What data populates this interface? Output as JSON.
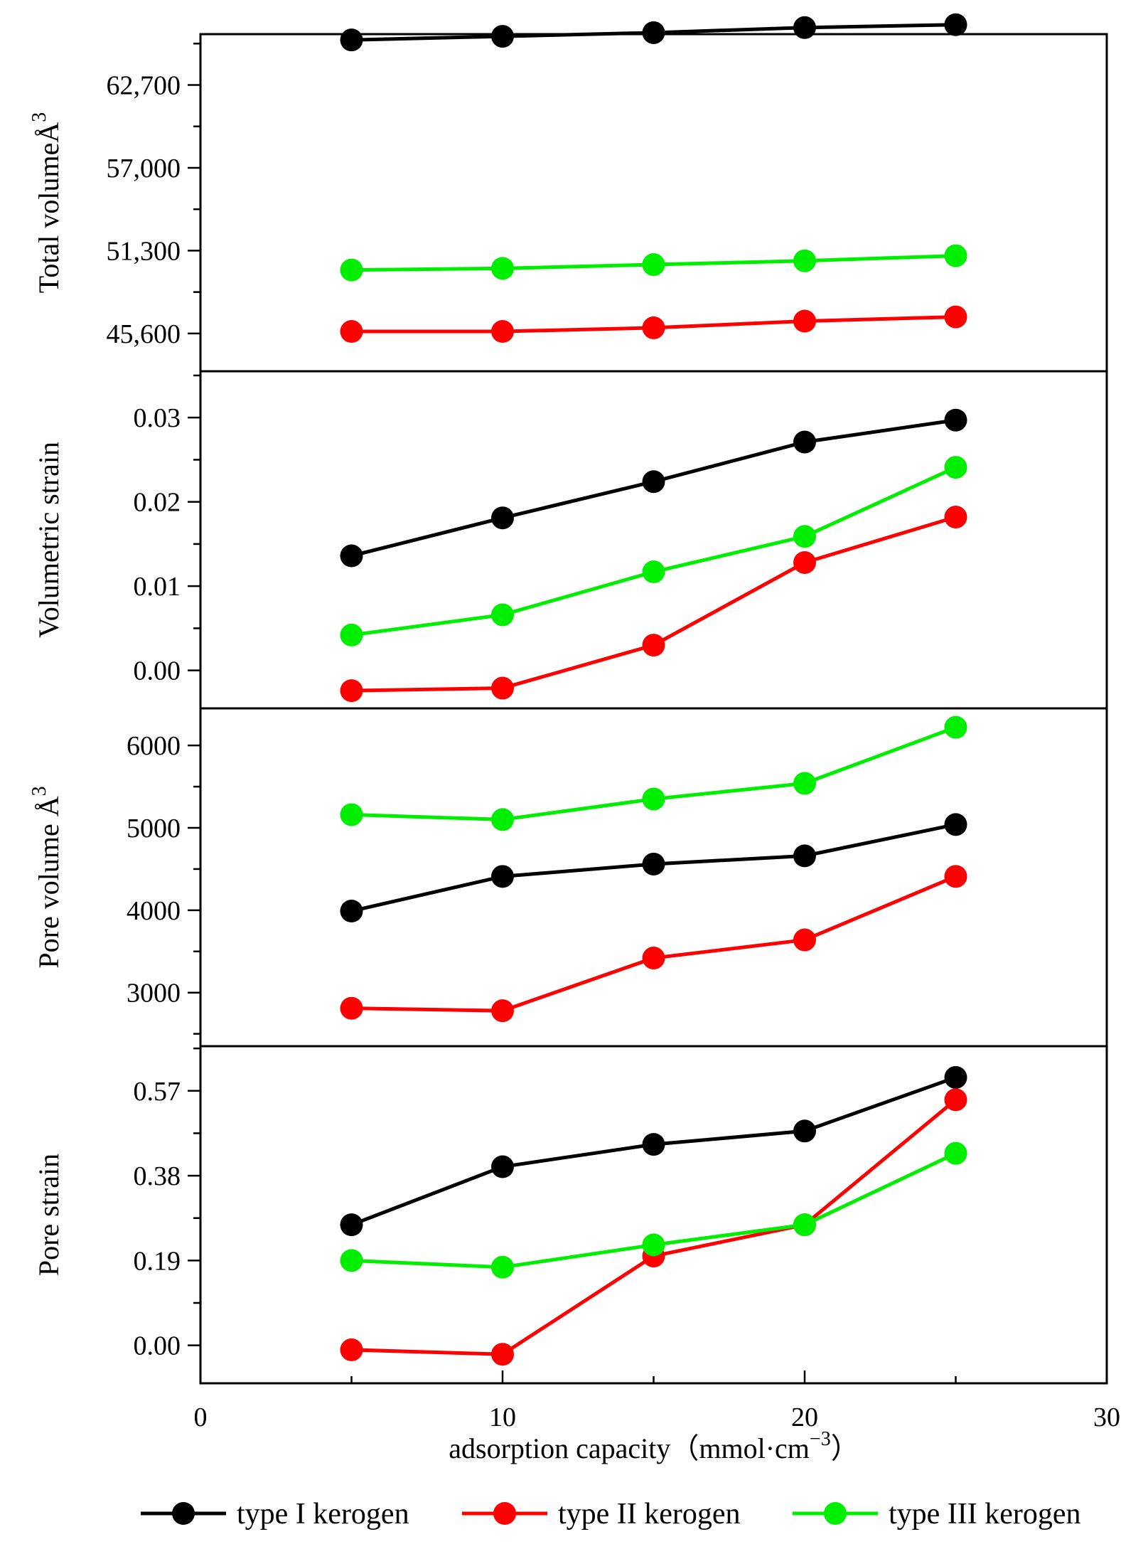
{
  "chart_data": [
    {
      "type": "line",
      "panel": "total-volume",
      "ylabel": "Total volume",
      "yunit": "Å",
      "yunit_sup": "3",
      "yticks": [
        "62,700",
        "57,000",
        "51,300",
        "45,600"
      ],
      "ytick_values": [
        62700,
        57000,
        51300,
        45600
      ],
      "ylim": [
        43000,
        66200
      ],
      "x": [
        5,
        10,
        15,
        20,
        25
      ],
      "series": [
        {
          "name": "type I kerogen",
          "values": [
            65800,
            66050,
            66300,
            66650,
            66850
          ]
        },
        {
          "name": "type II kerogen",
          "values": [
            45740,
            45740,
            45990,
            46450,
            46740
          ]
        },
        {
          "name": "type III kerogen",
          "values": [
            49970,
            50080,
            50340,
            50600,
            50950
          ]
        }
      ]
    },
    {
      "type": "line",
      "panel": "volumetric-strain",
      "ylabel": "Volumetric strain",
      "yticks": [
        "0.03",
        "0.02",
        "0.01",
        "0.00"
      ],
      "ytick_values": [
        0.03,
        0.02,
        0.01,
        0.0
      ],
      "ylim": [
        -0.0045,
        0.0355
      ],
      "x": [
        5,
        10,
        15,
        20,
        25
      ],
      "series": [
        {
          "name": "type I kerogen",
          "values": [
            0.0136,
            0.0181,
            0.0224,
            0.0271,
            0.0297
          ]
        },
        {
          "name": "type II kerogen",
          "values": [
            -0.0024,
            -0.0021,
            0.003,
            0.0128,
            0.0182
          ]
        },
        {
          "name": "type III kerogen",
          "values": [
            0.0042,
            0.0066,
            0.0117,
            0.0159,
            0.0241
          ]
        }
      ]
    },
    {
      "type": "line",
      "panel": "pore-volume",
      "ylabel": "Pore volume",
      "yunit": "Å",
      "yunit_sup": "3",
      "yticks": [
        "6000",
        "5000",
        "4000",
        "3000"
      ],
      "ytick_values": [
        6000,
        5000,
        4000,
        3000
      ],
      "ylim": [
        2350,
        6450
      ],
      "x": [
        5,
        10,
        15,
        20,
        25
      ],
      "series": [
        {
          "name": "type I kerogen",
          "values": [
            3990,
            4410,
            4560,
            4660,
            5040
          ]
        },
        {
          "name": "type II kerogen",
          "values": [
            2810,
            2780,
            3420,
            3640,
            4410
          ]
        },
        {
          "name": "type III kerogen",
          "values": [
            5160,
            5100,
            5350,
            5540,
            6220
          ]
        }
      ]
    },
    {
      "type": "line",
      "panel": "pore-strain",
      "ylabel": "Pore strain",
      "yticks": [
        "0.57",
        "0.38",
        "0.19",
        "0.00"
      ],
      "ytick_values": [
        0.57,
        0.38,
        0.19,
        0.0
      ],
      "ylim": [
        -0.085,
        0.67
      ],
      "x": [
        5,
        10,
        15,
        20,
        25
      ],
      "series": [
        {
          "name": "type I kerogen",
          "values": [
            0.27,
            0.4,
            0.45,
            0.48,
            0.6
          ]
        },
        {
          "name": "type II kerogen",
          "values": [
            -0.01,
            -0.02,
            0.2,
            0.27,
            0.55
          ]
        },
        {
          "name": "type III kerogen",
          "values": [
            0.19,
            0.175,
            0.225,
            0.27,
            0.43
          ]
        }
      ]
    }
  ],
  "xaxis": {
    "label": "adsorption capacity（mmol·cm",
    "label_sup": "−3",
    "label_close": "）",
    "ticks": [
      "0",
      "10",
      "20",
      "30"
    ],
    "tick_values": [
      0,
      10,
      20,
      30
    ],
    "xlim": [
      0,
      30
    ]
  },
  "legend": [
    {
      "name": "type I kerogen",
      "color": "#000000"
    },
    {
      "name": "type II kerogen",
      "color": "#ff0000"
    },
    {
      "name": "type III kerogen",
      "color": "#00ee00"
    }
  ],
  "colors": {
    "type I kerogen": "#000000",
    "type II kerogen": "#ff0000",
    "type III kerogen": "#00ee00"
  }
}
